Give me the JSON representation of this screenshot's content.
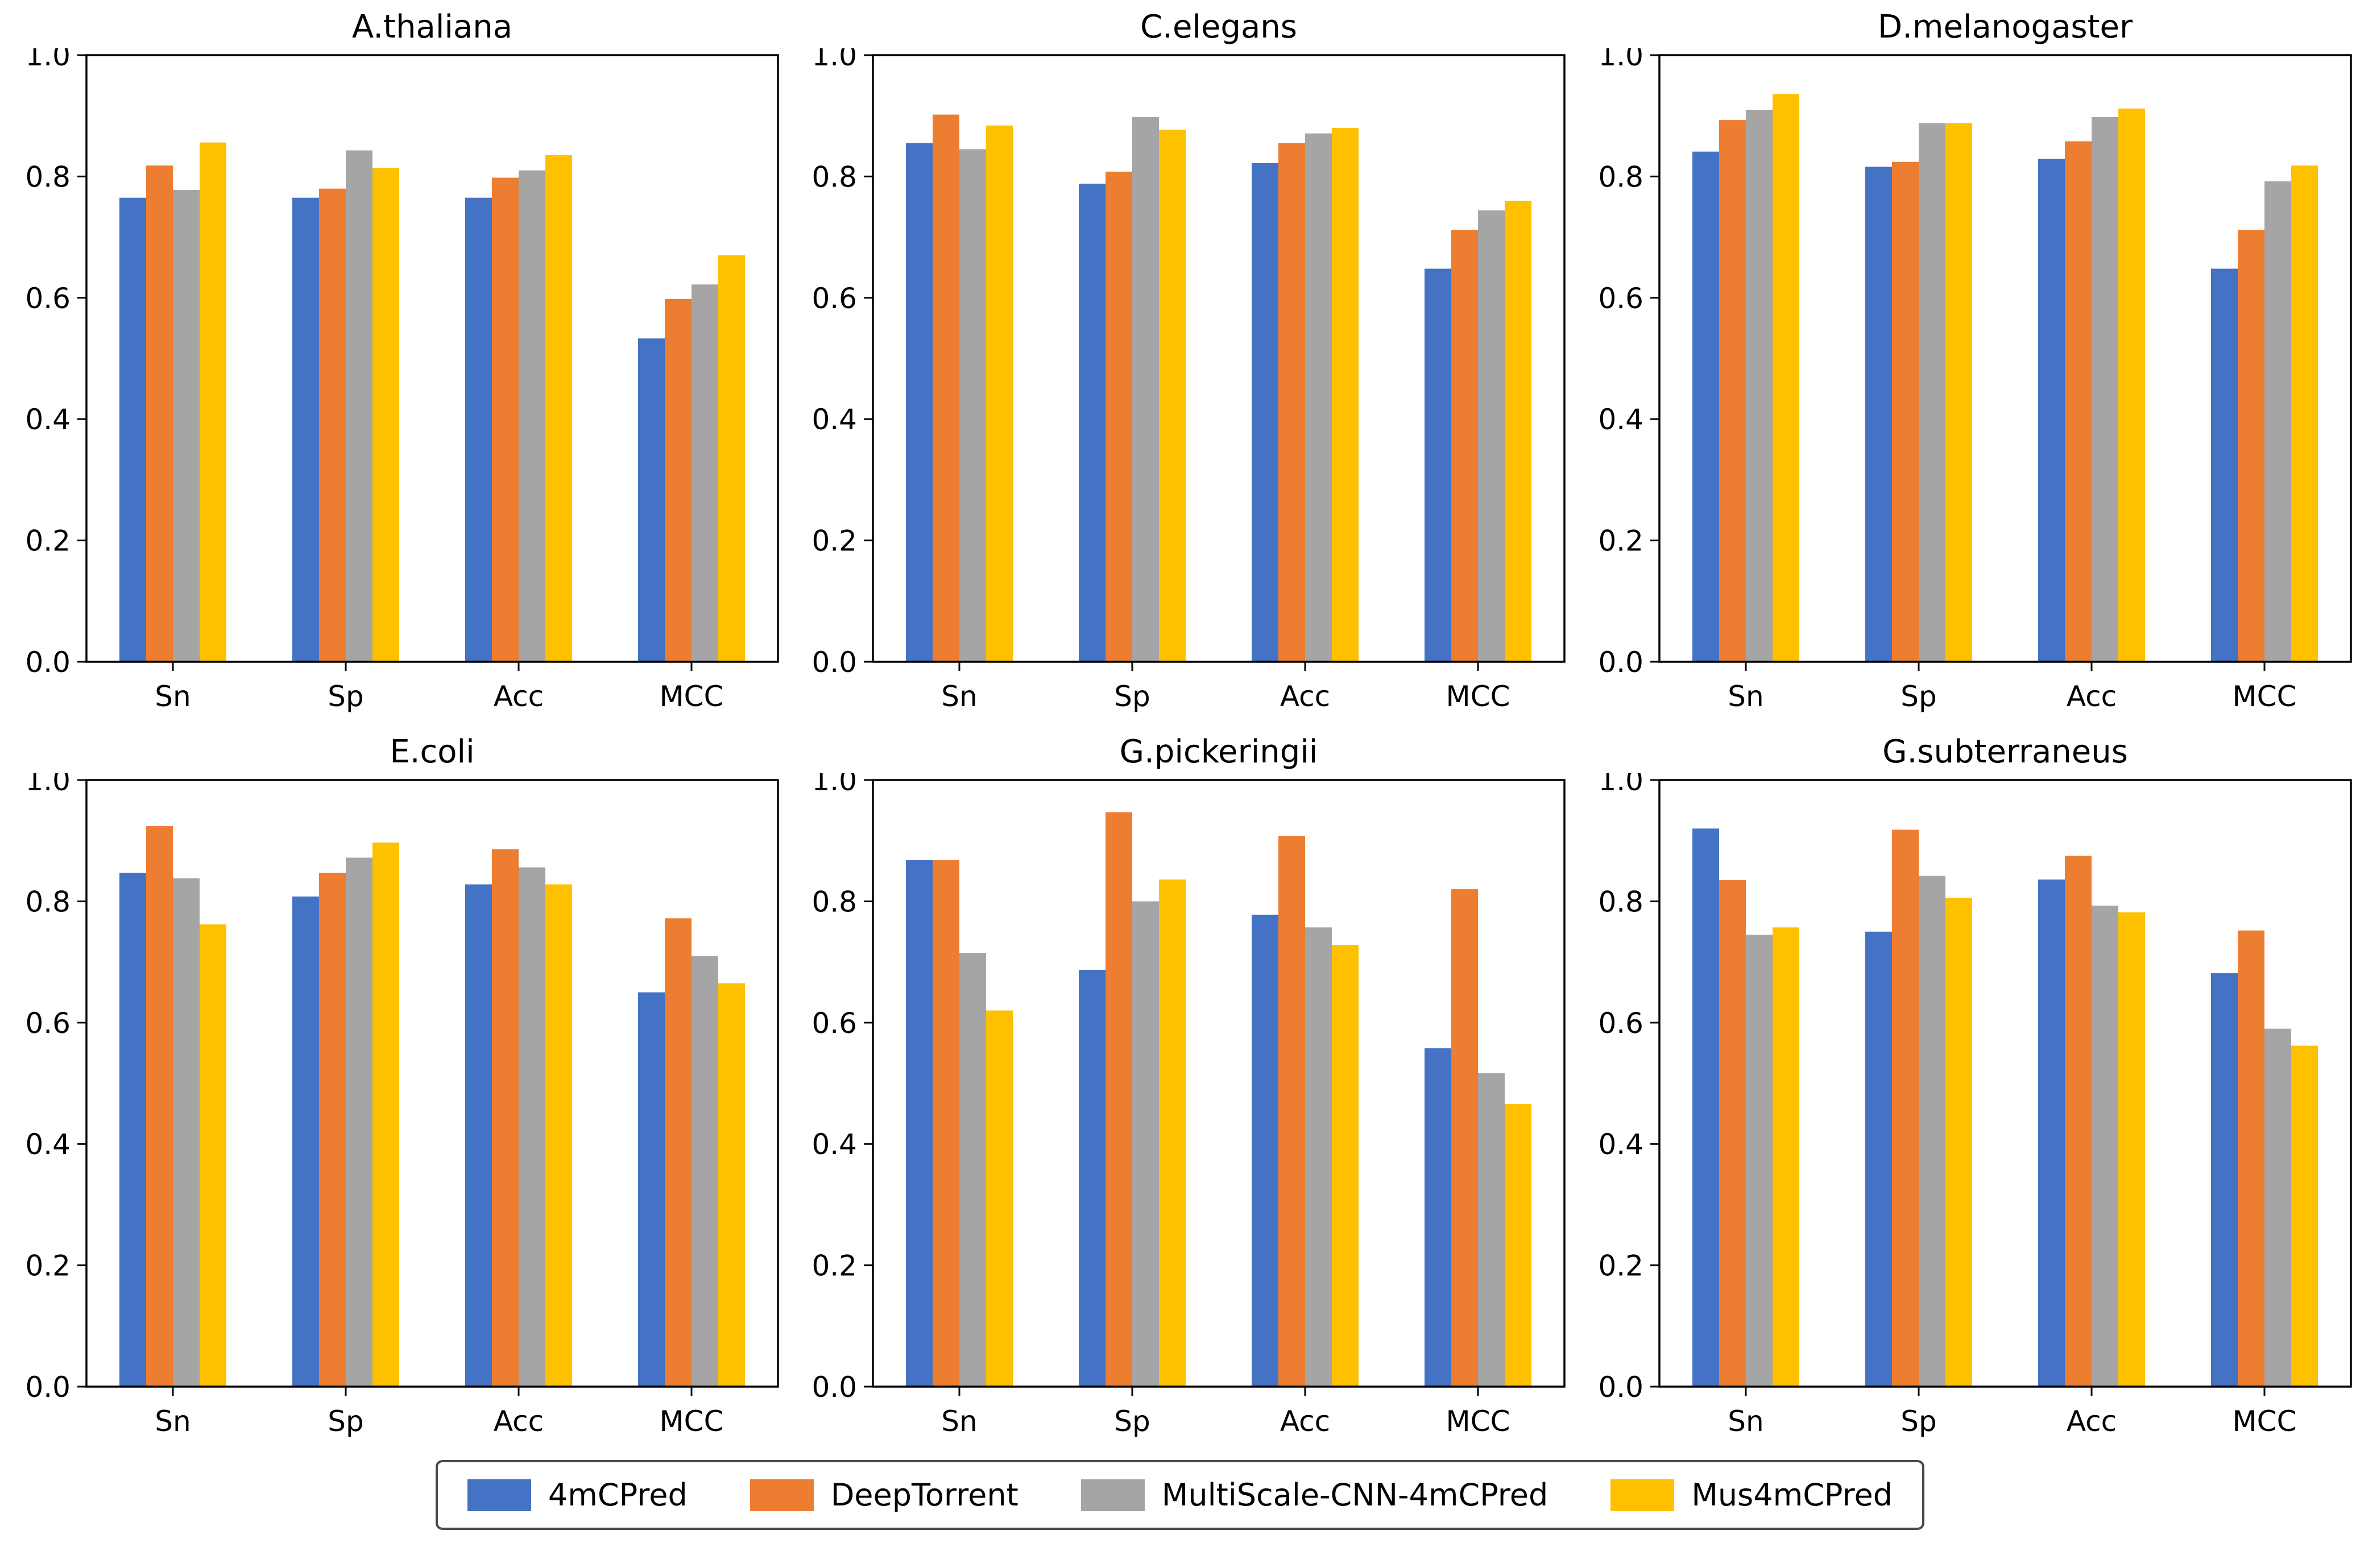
{
  "figure": {
    "background": "#ffffff",
    "axis_color": "#000000",
    "text_color": "#000000"
  },
  "axes": {
    "yticks": [
      "0.0",
      "0.2",
      "0.4",
      "0.6",
      "0.8",
      "1.0"
    ],
    "ylim": [
      0.0,
      1.0
    ],
    "categories": [
      "Sn",
      "Sp",
      "Acc",
      "MCC"
    ],
    "grid": "off"
  },
  "legend": {
    "position": "bottom-center",
    "items": [
      {
        "label": "4mCPred",
        "color": "#4472C4"
      },
      {
        "label": "DeepTorrent",
        "color": "#ED7D31"
      },
      {
        "label": "MultiScale-CNN-4mCPred",
        "color": "#A5A5A5"
      },
      {
        "label": "Mus4mCPred",
        "color": "#FFC000"
      }
    ]
  },
  "chart_data": [
    {
      "type": "bar",
      "title": "A.thaliana",
      "categories": [
        "Sn",
        "Sp",
        "Acc",
        "MCC"
      ],
      "ylim": [
        0.0,
        1.0
      ],
      "series": [
        {
          "name": "4mCPred",
          "values": [
            0.765,
            0.765,
            0.765,
            0.533
          ]
        },
        {
          "name": "DeepTorrent",
          "values": [
            0.818,
            0.78,
            0.798,
            0.598
          ]
        },
        {
          "name": "MultiScale-CNN-4mCPred",
          "values": [
            0.778,
            0.843,
            0.81,
            0.622
          ]
        },
        {
          "name": "Mus4mCPred",
          "values": [
            0.856,
            0.814,
            0.835,
            0.67
          ]
        }
      ]
    },
    {
      "type": "bar",
      "title": "C.elegans",
      "categories": [
        "Sn",
        "Sp",
        "Acc",
        "MCC"
      ],
      "ylim": [
        0.0,
        1.0
      ],
      "series": [
        {
          "name": "4mCPred",
          "values": [
            0.855,
            0.788,
            0.822,
            0.648
          ]
        },
        {
          "name": "DeepTorrent",
          "values": [
            0.902,
            0.808,
            0.855,
            0.712
          ]
        },
        {
          "name": "MultiScale-CNN-4mCPred",
          "values": [
            0.845,
            0.898,
            0.871,
            0.744
          ]
        },
        {
          "name": "Mus4mCPred",
          "values": [
            0.884,
            0.877,
            0.88,
            0.76
          ]
        }
      ]
    },
    {
      "type": "bar",
      "title": "D.melanogaster",
      "categories": [
        "Sn",
        "Sp",
        "Acc",
        "MCC"
      ],
      "ylim": [
        0.0,
        1.0
      ],
      "series": [
        {
          "name": "4mCPred",
          "values": [
            0.841,
            0.816,
            0.829,
            0.648
          ]
        },
        {
          "name": "DeepTorrent",
          "values": [
            0.893,
            0.824,
            0.858,
            0.712
          ]
        },
        {
          "name": "MultiScale-CNN-4mCPred",
          "values": [
            0.91,
            0.888,
            0.898,
            0.792
          ]
        },
        {
          "name": "Mus4mCPred",
          "values": [
            0.936,
            0.888,
            0.912,
            0.818
          ]
        }
      ]
    },
    {
      "type": "bar",
      "title": "E.coli",
      "categories": [
        "Sn",
        "Sp",
        "Acc",
        "MCC"
      ],
      "ylim": [
        0.0,
        1.0
      ],
      "series": [
        {
          "name": "4mCPred",
          "values": [
            0.847,
            0.808,
            0.828,
            0.65
          ]
        },
        {
          "name": "DeepTorrent",
          "values": [
            0.924,
            0.847,
            0.886,
            0.772
          ]
        },
        {
          "name": "MultiScale-CNN-4mCPred",
          "values": [
            0.838,
            0.872,
            0.856,
            0.71
          ]
        },
        {
          "name": "Mus4mCPred",
          "values": [
            0.762,
            0.897,
            0.828,
            0.665
          ]
        }
      ]
    },
    {
      "type": "bar",
      "title": "G.pickeringii",
      "categories": [
        "Sn",
        "Sp",
        "Acc",
        "MCC"
      ],
      "ylim": [
        0.0,
        1.0
      ],
      "series": [
        {
          "name": "4mCPred",
          "values": [
            0.868,
            0.687,
            0.778,
            0.558
          ]
        },
        {
          "name": "DeepTorrent",
          "values": [
            0.868,
            0.947,
            0.908,
            0.82
          ]
        },
        {
          "name": "MultiScale-CNN-4mCPred",
          "values": [
            0.715,
            0.8,
            0.757,
            0.517
          ]
        },
        {
          "name": "Mus4mCPred",
          "values": [
            0.62,
            0.836,
            0.728,
            0.466
          ]
        }
      ]
    },
    {
      "type": "bar",
      "title": "G.subterraneus",
      "categories": [
        "Sn",
        "Sp",
        "Acc",
        "MCC"
      ],
      "ylim": [
        0.0,
        1.0
      ],
      "series": [
        {
          "name": "4mCPred",
          "values": [
            0.92,
            0.75,
            0.836,
            0.682
          ]
        },
        {
          "name": "DeepTorrent",
          "values": [
            0.835,
            0.918,
            0.875,
            0.752
          ]
        },
        {
          "name": "MultiScale-CNN-4mCPred",
          "values": [
            0.745,
            0.842,
            0.793,
            0.59
          ]
        },
        {
          "name": "Mus4mCPred",
          "values": [
            0.757,
            0.806,
            0.782,
            0.562
          ]
        }
      ]
    }
  ]
}
